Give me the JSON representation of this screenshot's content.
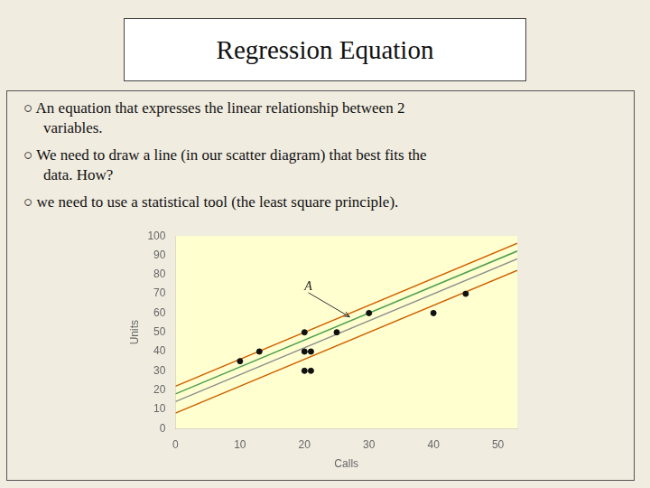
{
  "chart_data": {
    "type": "scatter",
    "title": "Regression Equation",
    "subtitle": [
      [
        "○ An equation that expresses the linear relationship between 2",
        "variables."
      ],
      [
        "○ We need to draw a line (in our scatter diagram) that best fits the",
        "data. How?"
      ],
      [
        "○ we need to use a statistical tool (the least square principle)."
      ]
    ],
    "xlabel": "Calls",
    "ylabel": "Units",
    "series": [
      {
        "type": "scatter",
        "color": "#111111",
        "x": [
          10,
          13,
          20,
          20,
          20,
          21,
          21,
          25,
          30,
          40,
          45
        ],
        "values": [
          35,
          40,
          50,
          40,
          30,
          30,
          40,
          50,
          60,
          60,
          70
        ]
      },
      {
        "type": "line",
        "color": "#d06000",
        "x": [
          0,
          53
        ],
        "values": [
          22,
          96.2
        ]
      },
      {
        "type": "line",
        "color": "#50a050",
        "x": [
          0,
          53
        ],
        "values": [
          18,
          92.2
        ]
      },
      {
        "type": "line",
        "color": "#909090",
        "x": [
          0,
          53
        ],
        "values": [
          14,
          88.2
        ]
      },
      {
        "type": "line",
        "color": "#d06000",
        "x": [
          0,
          53
        ],
        "values": [
          8,
          82.2
        ]
      }
    ],
    "xlim": [
      0,
      53
    ],
    "ylim": [
      0,
      100
    ],
    "xticks": [
      0,
      10,
      20,
      30,
      40,
      50
    ],
    "yticks": [
      0,
      10,
      20,
      30,
      40,
      50,
      60,
      70,
      80,
      90,
      100
    ],
    "annotations": [
      {
        "text": "A",
        "x": 27,
        "y": 58,
        "text_x": 20,
        "text_y": 72
      }
    ],
    "grid": false,
    "legend": false
  }
}
